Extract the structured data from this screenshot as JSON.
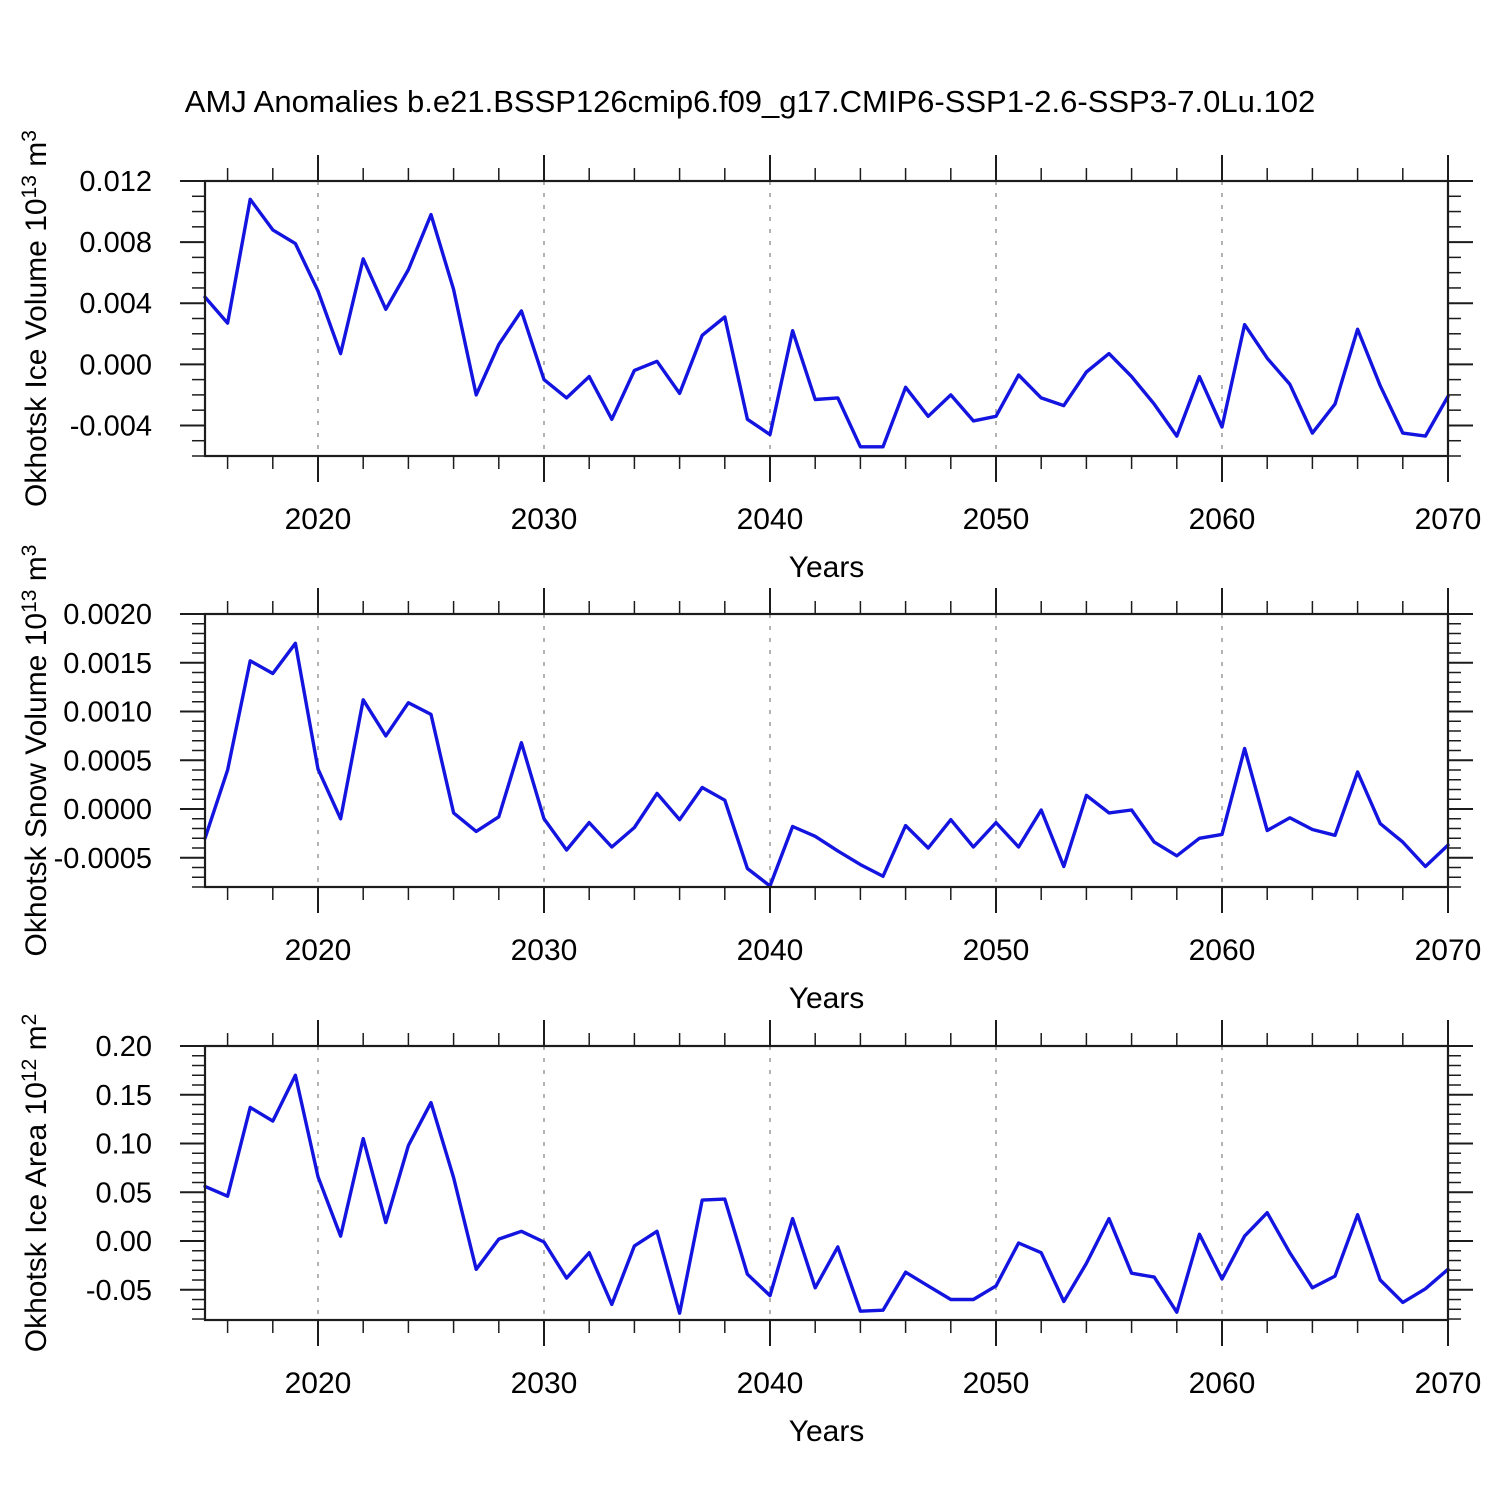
{
  "title": "AMJ Anomalies b.e21.BSSP126cmip6.f09_g17.CMIP6-SSP1-2.6-SSP3-7.0Lu.102",
  "line_color": "#1414e0",
  "chart_data": [
    {
      "type": "line",
      "name": "okhotsk-ice-volume",
      "ylabel": "Okhotsk Ice Volume 10^13^ m^3^",
      "xlabel": "Years",
      "line_color": "#1414e0",
      "xlim": [
        2015,
        2070
      ],
      "ylim": [
        -0.006,
        0.012
      ],
      "x_major_ticks": [
        2020,
        2030,
        2040,
        2050,
        2060,
        2070
      ],
      "x_major_labels": [
        "2020",
        "2030",
        "2040",
        "2050",
        "2060",
        "2070"
      ],
      "x_minor_step": 2,
      "x_gridlines": [
        2020,
        2030,
        2040,
        2050,
        2060
      ],
      "y_major_ticks": [
        0.012,
        0.008,
        0.004,
        0.0,
        -0.004
      ],
      "y_major_labels": [
        "0.012",
        "0.008",
        "0.004",
        "0.000",
        "-0.004"
      ],
      "y_minor_step": 0.001,
      "x": [
        2015,
        2016,
        2017,
        2018,
        2019,
        2020,
        2021,
        2022,
        2023,
        2024,
        2025,
        2026,
        2027,
        2028,
        2029,
        2030,
        2031,
        2032,
        2033,
        2034,
        2035,
        2036,
        2037,
        2038,
        2039,
        2040,
        2041,
        2042,
        2043,
        2044,
        2045,
        2046,
        2047,
        2048,
        2049,
        2050,
        2051,
        2052,
        2053,
        2054,
        2055,
        2056,
        2057,
        2058,
        2059,
        2060,
        2061,
        2062,
        2063,
        2064,
        2065,
        2066,
        2067,
        2068,
        2069,
        2070
      ],
      "values": [
        0.0044,
        0.0027,
        0.0108,
        0.0088,
        0.0079,
        0.0048,
        0.0007,
        0.0069,
        0.0036,
        0.0062,
        0.0098,
        0.0049,
        -0.002,
        0.0013,
        0.0035,
        -0.001,
        -0.0022,
        -0.0008,
        -0.0036,
        -0.0004,
        0.0002,
        -0.0019,
        0.0019,
        0.0031,
        -0.0036,
        -0.0046,
        0.0022,
        -0.0023,
        -0.0022,
        -0.0054,
        -0.0054,
        -0.0015,
        -0.0034,
        -0.002,
        -0.0037,
        -0.0034,
        -0.0007,
        -0.0022,
        -0.0027,
        -0.0005,
        0.0007,
        -0.0008,
        -0.0026,
        -0.0047,
        -0.0008,
        -0.0041,
        0.0026,
        0.0004,
        -0.0013,
        -0.0045,
        -0.0026,
        0.0023,
        -0.0014,
        -0.0045,
        -0.0047,
        -0.0021
      ]
    },
    {
      "type": "line",
      "name": "okhotsk-snow-volume",
      "ylabel": "Okhotsk Snow Volume 10^13^ m^3^",
      "xlabel": "Years",
      "line_color": "#1414e0",
      "xlim": [
        2015,
        2070
      ],
      "ylim": [
        -0.0008,
        0.002
      ],
      "x_major_ticks": [
        2020,
        2030,
        2040,
        2050,
        2060,
        2070
      ],
      "x_major_labels": [
        "2020",
        "2030",
        "2040",
        "2050",
        "2060",
        "2070"
      ],
      "x_minor_step": 2,
      "x_gridlines": [
        2020,
        2030,
        2040,
        2050,
        2060
      ],
      "y_major_ticks": [
        0.002,
        0.0015,
        0.001,
        0.0005,
        0.0,
        -0.0005
      ],
      "y_major_labels": [
        "0.0020",
        "0.0015",
        "0.0010",
        "0.0005",
        "0.0000",
        "-0.0005"
      ],
      "y_minor_step": 0.0001,
      "x": [
        2015,
        2016,
        2017,
        2018,
        2019,
        2020,
        2021,
        2022,
        2023,
        2024,
        2025,
        2026,
        2027,
        2028,
        2029,
        2030,
        2031,
        2032,
        2033,
        2034,
        2035,
        2036,
        2037,
        2038,
        2039,
        2040,
        2041,
        2042,
        2043,
        2044,
        2045,
        2046,
        2047,
        2048,
        2049,
        2050,
        2051,
        2052,
        2053,
        2054,
        2055,
        2056,
        2057,
        2058,
        2059,
        2060,
        2061,
        2062,
        2063,
        2064,
        2065,
        2066,
        2067,
        2068,
        2069,
        2070
      ],
      "values": [
        -0.0003,
        0.0004,
        0.00152,
        0.00139,
        0.0017,
        0.00041,
        -0.0001,
        0.00112,
        0.00075,
        0.00109,
        0.00097,
        -4e-05,
        -0.00023,
        -8e-05,
        0.00068,
        -0.0001,
        -0.00042,
        -0.00014,
        -0.00039,
        -0.00019,
        0.00016,
        -0.00011,
        0.00022,
        9e-05,
        -0.00061,
        -0.00079,
        -0.00018,
        -0.00028,
        -0.00043,
        -0.00057,
        -0.00069,
        -0.00017,
        -0.0004,
        -0.00011,
        -0.00039,
        -0.00014,
        -0.00039,
        -1e-05,
        -0.00059,
        0.00014,
        -4e-05,
        -1e-05,
        -0.00034,
        -0.00048,
        -0.0003,
        -0.00026,
        0.00062,
        -0.00022,
        -9e-05,
        -0.00021,
        -0.00027,
        0.00038,
        -0.00015,
        -0.00034,
        -0.00059,
        -0.00037
      ]
    },
    {
      "type": "line",
      "name": "okhotsk-ice-area",
      "ylabel": "Okhotsk Ice Area 10^12^ m^2^",
      "xlabel": "Years",
      "line_color": "#1414e0",
      "xlim": [
        2015,
        2070
      ],
      "ylim": [
        -0.081,
        0.2
      ],
      "x_major_ticks": [
        2020,
        2030,
        2040,
        2050,
        2060,
        2070
      ],
      "x_major_labels": [
        "2020",
        "2030",
        "2040",
        "2050",
        "2060",
        "2070"
      ],
      "x_minor_step": 2,
      "x_gridlines": [
        2020,
        2030,
        2040,
        2050,
        2060
      ],
      "y_major_ticks": [
        0.2,
        0.15,
        0.1,
        0.05,
        0.0,
        -0.05
      ],
      "y_major_labels": [
        "0.20",
        "0.15",
        "0.10",
        "0.05",
        "0.00",
        "-0.05"
      ],
      "y_minor_step": 0.01,
      "x": [
        2015,
        2016,
        2017,
        2018,
        2019,
        2020,
        2021,
        2022,
        2023,
        2024,
        2025,
        2026,
        2027,
        2028,
        2029,
        2030,
        2031,
        2032,
        2033,
        2034,
        2035,
        2036,
        2037,
        2038,
        2039,
        2040,
        2041,
        2042,
        2043,
        2044,
        2045,
        2046,
        2047,
        2048,
        2049,
        2050,
        2051,
        2052,
        2053,
        2054,
        2055,
        2056,
        2057,
        2058,
        2059,
        2060,
        2061,
        2062,
        2063,
        2064,
        2065,
        2066,
        2067,
        2068,
        2069,
        2070
      ],
      "values": [
        0.056,
        0.046,
        0.137,
        0.123,
        0.17,
        0.066,
        0.005,
        0.105,
        0.019,
        0.098,
        0.142,
        0.065,
        -0.029,
        0.002,
        0.01,
        -0.001,
        -0.038,
        -0.012,
        -0.065,
        -0.005,
        0.01,
        -0.074,
        0.042,
        0.043,
        -0.034,
        -0.056,
        0.023,
        -0.048,
        -0.006,
        -0.072,
        -0.071,
        -0.032,
        -0.046,
        -0.06,
        -0.06,
        -0.046,
        -0.002,
        -0.012,
        -0.062,
        -0.023,
        0.023,
        -0.033,
        -0.037,
        -0.073,
        0.007,
        -0.039,
        0.005,
        0.029,
        -0.012,
        -0.048,
        -0.036,
        0.027,
        -0.04,
        -0.063,
        -0.049,
        -0.029
      ]
    }
  ]
}
